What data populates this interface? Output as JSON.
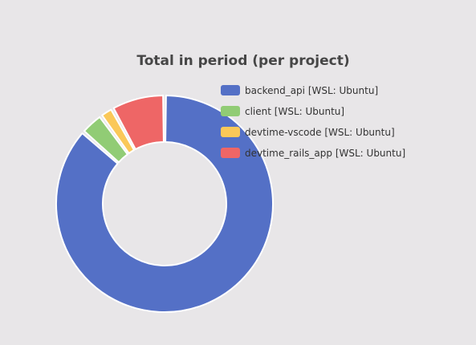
{
  "chart_data": {
    "type": "pie",
    "title": "Total in period (per project)",
    "legend_position": "top-right",
    "categories": [
      "backend_api [WSL: Ubuntu]",
      "client [WSL: Ubuntu]",
      "devtime-vscode [WSL: Ubuntu]",
      "devtime_rails_app [WSL: Ubuntu]"
    ],
    "values": [
      86.5,
      3.5,
      2.0,
      8.0
    ],
    "colors": [
      "#5470c6",
      "#91cc75",
      "#fac858",
      "#ee6666"
    ]
  }
}
